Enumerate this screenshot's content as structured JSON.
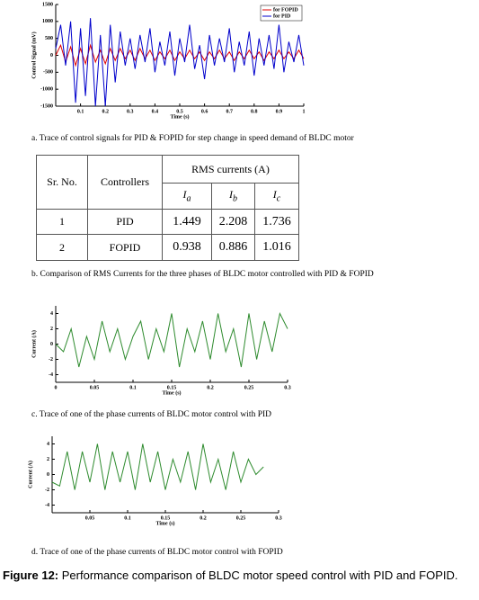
{
  "chart_data": [
    {
      "type": "line",
      "ylabel": "Control Signal (mV)",
      "xlabel": "Time (s)",
      "xlim": [
        0,
        1
      ],
      "xticks": [
        0.1,
        0.2,
        0.3,
        0.4,
        0.5,
        0.6,
        0.7,
        0.8,
        0.9,
        1
      ],
      "ylim": [
        -1500,
        1500
      ],
      "yticks": [
        -1500,
        -1000,
        -500,
        0,
        500,
        1000,
        1500
      ],
      "legend": "top-right",
      "x": [
        0,
        0.02,
        0.04,
        0.06,
        0.08,
        0.1,
        0.12,
        0.14,
        0.16,
        0.18,
        0.2,
        0.22,
        0.24,
        0.26,
        0.28,
        0.3,
        0.32,
        0.34,
        0.36,
        0.38,
        0.4,
        0.42,
        0.44,
        0.46,
        0.48,
        0.5,
        0.52,
        0.54,
        0.56,
        0.58,
        0.6,
        0.62,
        0.64,
        0.66,
        0.68,
        0.7,
        0.72,
        0.74,
        0.76,
        0.78,
        0.8,
        0.82,
        0.84,
        0.86,
        0.88,
        0.9,
        0.92,
        0.94,
        0.96,
        0.98,
        1
      ],
      "series": [
        {
          "name": "for FOPID",
          "color": "#e00000",
          "values": [
            0,
            300,
            -200,
            250,
            -300,
            200,
            -250,
            300,
            -200,
            150,
            -250,
            200,
            -150,
            200,
            -100,
            150,
            -150,
            200,
            -100,
            150,
            -150,
            100,
            -100,
            150,
            -150,
            100,
            -100,
            150,
            -100,
            100,
            -150,
            100,
            -100,
            150,
            -100,
            100,
            -150,
            100,
            -100,
            150,
            -100,
            100,
            -150,
            100,
            -100,
            150,
            -100,
            100,
            -100,
            150,
            -100
          ]
        },
        {
          "name": "for PID",
          "color": "#0000cc",
          "values": [
            200,
            900,
            -300,
            1000,
            -1400,
            800,
            -1200,
            1100,
            -1500,
            600,
            -1500,
            900,
            -800,
            700,
            -300,
            500,
            -400,
            600,
            -200,
            800,
            -500,
            400,
            -300,
            700,
            -600,
            500,
            -200,
            900,
            -400,
            300,
            -700,
            600,
            -300,
            500,
            -200,
            800,
            -500,
            400,
            -300,
            700,
            -600,
            500,
            -300,
            600,
            -400,
            900,
            -500,
            400,
            -200,
            600,
            -300
          ]
        }
      ]
    },
    {
      "type": "line",
      "ylabel": "Current (A)",
      "xlabel": "Time (s)",
      "xlim": [
        0,
        0.3
      ],
      "xticks": [
        0,
        0.05,
        0.1,
        0.15,
        0.2,
        0.25,
        0.3
      ],
      "ylim": [
        -5,
        5
      ],
      "yticks": [
        -4,
        -2,
        0,
        2,
        4
      ],
      "x": [
        0,
        0.01,
        0.02,
        0.03,
        0.04,
        0.05,
        0.06,
        0.07,
        0.08,
        0.09,
        0.1,
        0.11,
        0.12,
        0.13,
        0.14,
        0.15,
        0.16,
        0.17,
        0.18,
        0.19,
        0.2,
        0.21,
        0.22,
        0.23,
        0.24,
        0.25,
        0.26,
        0.27,
        0.28,
        0.29,
        0.3
      ],
      "series": [
        {
          "name": "PID",
          "color": "#2e8b2e",
          "values": [
            0,
            -1,
            2,
            -3,
            1,
            -2,
            3,
            -1,
            2,
            -2,
            1,
            3,
            -2,
            2,
            -1,
            4,
            -3,
            2,
            -1,
            3,
            -2,
            4,
            -1,
            2,
            -3,
            4,
            -2,
            3,
            -1,
            4,
            2
          ]
        }
      ]
    },
    {
      "type": "line",
      "ylabel": "Current (A)",
      "xlabel": "Time (s)",
      "xlim": [
        0,
        0.3
      ],
      "xticks": [
        0.05,
        0.1,
        0.15,
        0.2,
        0.25,
        0.3
      ],
      "ylim": [
        -5,
        5
      ],
      "yticks": [
        -4,
        -2,
        0,
        2,
        4
      ],
      "x": [
        0,
        0.01,
        0.02,
        0.03,
        0.04,
        0.05,
        0.06,
        0.07,
        0.08,
        0.09,
        0.1,
        0.11,
        0.12,
        0.13,
        0.14,
        0.15,
        0.16,
        0.17,
        0.18,
        0.19,
        0.2,
        0.21,
        0.22,
        0.23,
        0.24,
        0.25,
        0.26,
        0.27,
        0.28
      ],
      "series": [
        {
          "name": "FOPID",
          "color": "#2e8b2e",
          "values": [
            -1,
            -1.5,
            3,
            -2,
            3,
            -1,
            4,
            -2,
            3,
            -1,
            3,
            -2,
            4,
            -1,
            3,
            -2,
            2,
            -1,
            3,
            -2,
            4,
            -1,
            2,
            -2,
            3,
            -1,
            2,
            0,
            1
          ]
        }
      ]
    }
  ],
  "table": {
    "header": [
      "Sr. No.",
      "Controllers",
      "RMS currents (A)"
    ],
    "subheader": [
      {
        "symbol": "I",
        "subscript": "a"
      },
      {
        "symbol": "I",
        "subscript": "b"
      },
      {
        "symbol": "I",
        "subscript": "c"
      }
    ],
    "rows": [
      [
        "1",
        "PID",
        "1.449",
        "2.208",
        "1.736"
      ],
      [
        "2",
        "FOPID",
        "0.938",
        "0.886",
        "1.016"
      ]
    ]
  },
  "captions": [
    "a. Trace of control signals for PID & FOPID for step change in speed demand of BLDC motor",
    "b. Comparison of RMS Currents for the three phases of BLDC motor controlled with PID & FOPID",
    "c. Trace of one of the phase currents of BLDC motor control with PID",
    "d. Trace of one of the phase currents of BLDC motor control with FOPID"
  ],
  "figure_caption": {
    "label": "Figure 12:",
    "text": "Performance comparison of BLDC motor speed control with PID and FOPID."
  }
}
